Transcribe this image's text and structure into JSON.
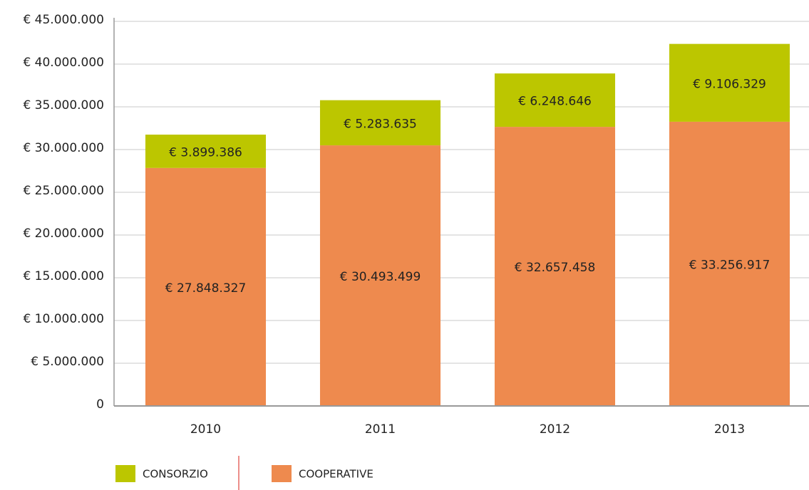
{
  "chart_data": {
    "type": "stacked_bar",
    "categories": [
      "2010",
      "2011",
      "2012",
      "2013"
    ],
    "series": [
      {
        "name": "COOPERATIVE",
        "color": "#ee8a4e",
        "values": [
          27848327,
          30493499,
          32657458,
          33256917
        ],
        "value_labels": [
          "€ 27.848.327",
          "€ 30.493.499",
          "€ 32.657.458",
          "€ 33.256.917"
        ]
      },
      {
        "name": "CONSORZIO",
        "color": "#bcc600",
        "values": [
          3899386,
          5283635,
          6248646,
          9106329
        ],
        "value_labels": [
          "€ 3.899.386",
          "€ 5.283.635",
          "€ 6.248.646",
          "€ 9.106.329"
        ]
      }
    ],
    "ylim": [
      0,
      45000000
    ],
    "yticks": [
      0,
      {
        "value": 5000000,
        "label": "€ 5.000.000"
      },
      {
        "value": 10000000,
        "label": "€ 10.000.000"
      },
      {
        "value": 15000000,
        "label": "€ 15.000.000"
      },
      {
        "value": 20000000,
        "label": "€ 20.000.000"
      },
      {
        "value": 25000000,
        "label": "€ 25.000.000"
      },
      {
        "value": 30000000,
        "label": "€ 30.000.000"
      },
      {
        "value": 35000000,
        "label": "€ 35.000.000"
      },
      {
        "value": 40000000,
        "label": "€ 40.000.000"
      },
      {
        "value": 45000000,
        "label": "€ 45.000.000"
      }
    ],
    "grid": true
  }
}
